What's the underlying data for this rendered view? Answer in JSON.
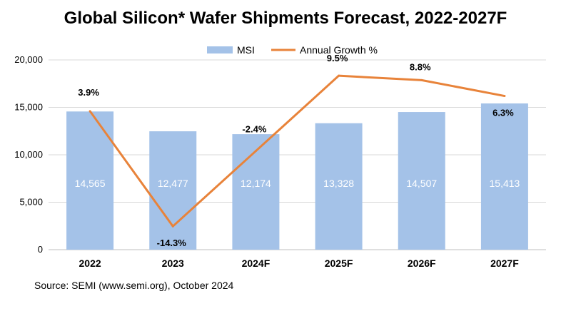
{
  "chart_data": {
    "type": "bar",
    "title": "Global Silicon* Wafer Shipments Forecast, 2022-2027F",
    "categories": [
      "2022",
      "2023",
      "2024F",
      "2025F",
      "2026F",
      "2027F"
    ],
    "series": [
      {
        "name": "MSI",
        "kind": "bar",
        "axis": "left",
        "values": [
          14565,
          12477,
          12174,
          13328,
          14507,
          15413
        ],
        "labels": [
          "14,565",
          "12,477",
          "12,174",
          "13,328",
          "14,507",
          "15,413"
        ],
        "color": "#a4c2e8"
      },
      {
        "name": "Annual Growth %",
        "kind": "line",
        "axis": "right",
        "values": [
          3.9,
          -14.3,
          -2.4,
          9.5,
          8.8,
          6.3
        ],
        "labels": [
          "3.9%",
          "-14.3%",
          "-2.4%",
          "9.5%",
          "8.8%",
          "6.3%"
        ],
        "color": "#e8833a"
      }
    ],
    "y_left": {
      "range": [
        0,
        20000
      ],
      "ticks": [
        0,
        5000,
        10000,
        15000,
        20000
      ],
      "tick_labels": [
        "0",
        "5,000",
        "10,000",
        "15,000",
        "20,000"
      ]
    },
    "y_right": {
      "range": [
        -18,
        12
      ],
      "visible": false
    },
    "legend_position": "top-center",
    "xlabel": "",
    "ylabel": ""
  },
  "source": "Source: SEMI (www.semi.org), October 2024"
}
